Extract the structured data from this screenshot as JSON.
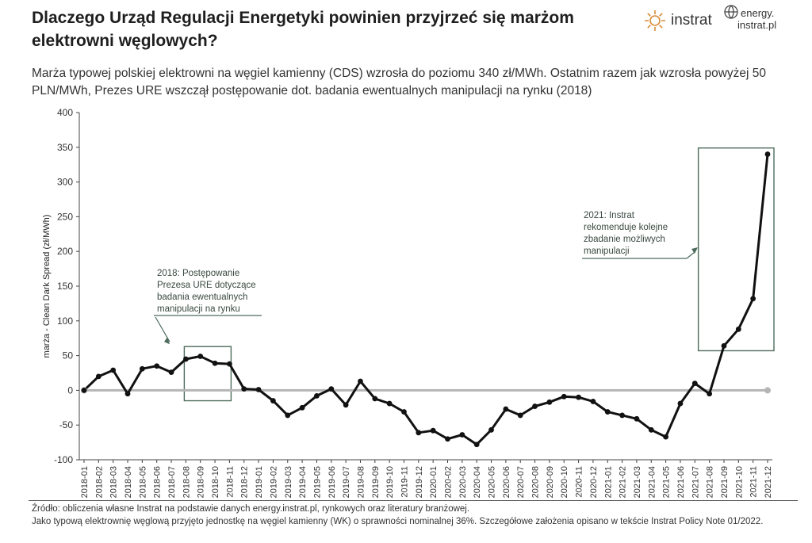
{
  "header": {
    "title": "Dlaczego Urząd Regulacji Energetyki powinien przyjrzeć się marżom elektrowni węglowych?",
    "subtitle": "Marża typowej polskiej elektrowni na węgiel kamienny (CDS) wzrosła do poziomu 340 zł/MWh. Ostatnim razem jak wzrosła powyżej 50 PLN/MWh, Prezes URE wszczął postępowanie dot. badania ewentualnych manipulacji na rynku (2018)"
  },
  "logos": {
    "instrat": "instrat",
    "energy_line1": "energy.",
    "energy_line2": "instrat.pl"
  },
  "chart_data": {
    "type": "line",
    "ylabel": "marża - Clean Dark Spread (zł/MWh)",
    "xlabel": "",
    "ylim": [
      -100,
      400
    ],
    "yticks": [
      -100,
      -50,
      0,
      50,
      100,
      150,
      200,
      250,
      300,
      350,
      400
    ],
    "grid": false,
    "x": [
      "2018-01",
      "2018-02",
      "2018-03",
      "2018-04",
      "2018-05",
      "2018-06",
      "2018-07",
      "2018-08",
      "2018-09",
      "2018-10",
      "2018-11",
      "2018-12",
      "2019-01",
      "2019-02",
      "2019-03",
      "2019-04",
      "2019-05",
      "2019-06",
      "2019-07",
      "2019-08",
      "2019-09",
      "2019-10",
      "2019-11",
      "2019-12",
      "2020-01",
      "2020-02",
      "2020-03",
      "2020-04",
      "2020-05",
      "2020-06",
      "2020-07",
      "2020-08",
      "2020-09",
      "2020-10",
      "2020-11",
      "2020-12",
      "2021-01",
      "2021-02",
      "2021-03",
      "2021-04",
      "2021-05",
      "2021-06",
      "2021-07",
      "2021-08",
      "2021-09",
      "2021-10",
      "2021-11",
      "2021-12"
    ],
    "series": [
      {
        "values": [
          0,
          20,
          29,
          -5,
          31,
          35,
          26,
          45,
          49,
          39,
          38,
          2,
          1,
          -15,
          -36,
          -25,
          -8,
          2,
          -21,
          13,
          -12,
          -19,
          -31,
          -61,
          -58,
          -70,
          -64,
          -78,
          -57,
          -27,
          -36,
          -23,
          -17,
          -9,
          -10,
          -16,
          -31,
          -36,
          -41,
          -57,
          -67,
          -19,
          10,
          -5,
          64,
          88,
          132,
          340
        ],
        "color": "#111111"
      }
    ],
    "zero_line": {
      "y": 0,
      "color": "#b5b5b5"
    },
    "annotations": [
      {
        "text": [
          "2018: Postępowanie",
          "Prezesa URE dotyczące",
          "badania ewentualnych",
          "manipulacji na rynku"
        ],
        "box_x": [
          "2018-08",
          "2018-11"
        ],
        "box_y": [
          -15,
          63
        ],
        "color": "#4d6b5c"
      },
      {
        "text": [
          "2021: Instrat",
          "rekomenduje kolejne",
          "zbadanie możliwych",
          "manipulacji"
        ],
        "box_x": [
          "2021-08",
          "2021-12"
        ],
        "box_y": [
          57,
          349
        ],
        "color": "#4d6b5c"
      }
    ]
  },
  "footer": {
    "line1": "Źródło: obliczenia własne Instrat na podstawie danych energy.instrat.pl, rynkowych oraz literatury branżowej.",
    "line2": "Jako typową elektrownię węglową przyjęto jednostkę na węgiel kamienny (WK) o sprawności nominalnej 36%. Szczegółowe założenia opisano w tekście Instrat Policy Note 01/2022."
  }
}
